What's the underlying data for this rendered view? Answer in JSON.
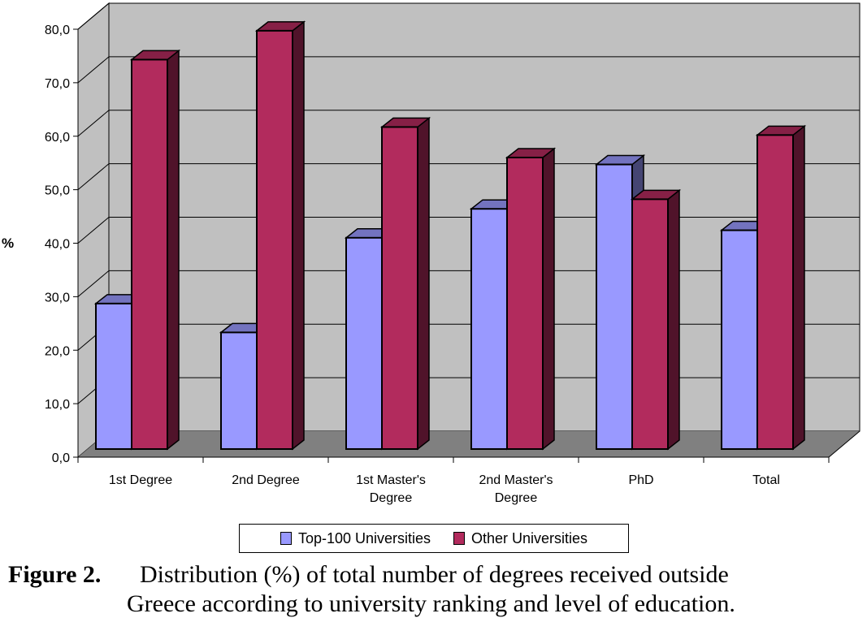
{
  "chart_data": {
    "type": "bar",
    "ylabel": "%",
    "ylim": [
      0,
      80
    ],
    "yticks": [
      "0,0",
      "10,0",
      "20,0",
      "30,0",
      "40,0",
      "50,0",
      "60,0",
      "70,0",
      "80,0"
    ],
    "categories": [
      [
        "1st Degree"
      ],
      [
        "2nd Degree"
      ],
      [
        "1st Master's",
        "Degree"
      ],
      [
        "2nd Master's",
        "Degree"
      ],
      [
        "PhD"
      ],
      [
        "Total"
      ]
    ],
    "series": [
      {
        "name": "Top-100 Universities",
        "color": "#9999ff",
        "values": [
          27.2,
          21.8,
          39.5,
          44.9,
          53.2,
          40.9
        ]
      },
      {
        "name": "Other Universities",
        "color": "#b22b5d",
        "values": [
          72.8,
          78.2,
          60.2,
          54.5,
          46.7,
          58.7
        ]
      }
    ],
    "grid": true,
    "legend_position": "bottom",
    "three_d": true
  },
  "caption": {
    "label": "Figure 2.",
    "line1": "Distribution (%) of total number of degrees received outside",
    "line2": "Greece according to university ranking and level of education."
  }
}
